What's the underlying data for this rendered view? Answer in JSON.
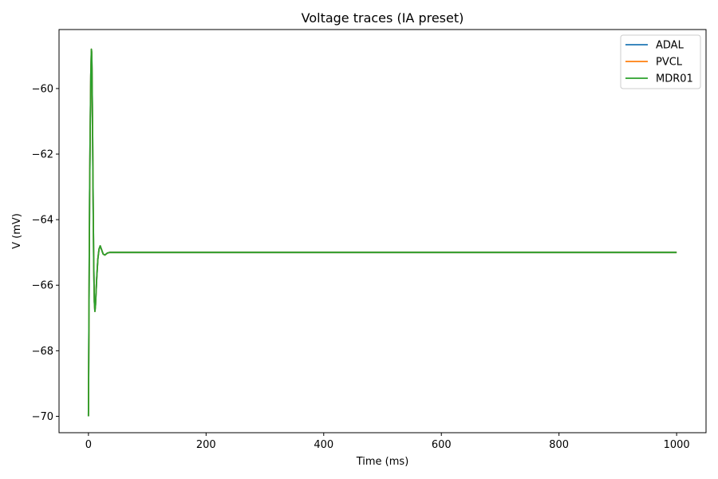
{
  "chart_data": {
    "type": "line",
    "title": "Voltage traces (IA preset)",
    "xlabel": "Time (ms)",
    "ylabel": "V (mV)",
    "xlim": [
      -50,
      1050
    ],
    "ylim": [
      -70.5,
      -58.2
    ],
    "xticks": [
      0,
      200,
      400,
      600,
      800,
      1000
    ],
    "yticks": [
      -70,
      -68,
      -66,
      -64,
      -62,
      -60
    ],
    "grid": false,
    "legend_position": "top-right",
    "series": [
      {
        "name": "ADAL",
        "color": "#1f77b4",
        "x": [
          0,
          0.5,
          1,
          1.5,
          2,
          3,
          4,
          5,
          5.5,
          6,
          7,
          8,
          9,
          10,
          11,
          12,
          13,
          14,
          16,
          18,
          20,
          22,
          25,
          28,
          32,
          36,
          40,
          50,
          100,
          200,
          400,
          600,
          800,
          1000
        ],
        "y": [
          -70,
          -68.2,
          -66.5,
          -64.8,
          -63.2,
          -61.2,
          -59.6,
          -58.8,
          -58.9,
          -59.4,
          -61.2,
          -63.5,
          -65.4,
          -66.5,
          -66.8,
          -66.6,
          -66.2,
          -65.8,
          -65.2,
          -64.9,
          -64.8,
          -64.9,
          -65.05,
          -65.08,
          -65.02,
          -65.0,
          -65.0,
          -65.0,
          -65.0,
          -65.0,
          -65.0,
          -65.0,
          -65.0,
          -65.0
        ]
      },
      {
        "name": "PVCL",
        "color": "#ff7f0e",
        "x": [
          0,
          0.5,
          1,
          1.5,
          2,
          3,
          4,
          5,
          5.5,
          6,
          7,
          8,
          9,
          10,
          11,
          12,
          13,
          14,
          16,
          18,
          20,
          22,
          25,
          28,
          32,
          36,
          40,
          50,
          100,
          200,
          400,
          600,
          800,
          1000
        ],
        "y": [
          -70,
          -68.2,
          -66.5,
          -64.8,
          -63.2,
          -61.2,
          -59.6,
          -58.8,
          -58.9,
          -59.4,
          -61.2,
          -63.5,
          -65.4,
          -66.5,
          -66.8,
          -66.6,
          -66.2,
          -65.8,
          -65.2,
          -64.9,
          -64.8,
          -64.9,
          -65.05,
          -65.08,
          -65.02,
          -65.0,
          -65.0,
          -65.0,
          -65.0,
          -65.0,
          -65.0,
          -65.0,
          -65.0,
          -65.0
        ]
      },
      {
        "name": "MDR01",
        "color": "#2ca02c",
        "x": [
          0,
          0.5,
          1,
          1.5,
          2,
          3,
          4,
          5,
          5.5,
          6,
          7,
          8,
          9,
          10,
          11,
          12,
          13,
          14,
          16,
          18,
          20,
          22,
          25,
          28,
          32,
          36,
          40,
          50,
          100,
          200,
          400,
          600,
          800,
          1000
        ],
        "y": [
          -70,
          -68.2,
          -66.5,
          -64.8,
          -63.2,
          -61.2,
          -59.6,
          -58.8,
          -58.9,
          -59.4,
          -61.2,
          -63.5,
          -65.4,
          -66.5,
          -66.8,
          -66.6,
          -66.2,
          -65.8,
          -65.2,
          -64.9,
          -64.8,
          -64.9,
          -65.05,
          -65.08,
          -65.02,
          -65.0,
          -65.0,
          -65.0,
          -65.0,
          -65.0,
          -65.0,
          -65.0,
          -65.0,
          -65.0
        ]
      }
    ]
  }
}
